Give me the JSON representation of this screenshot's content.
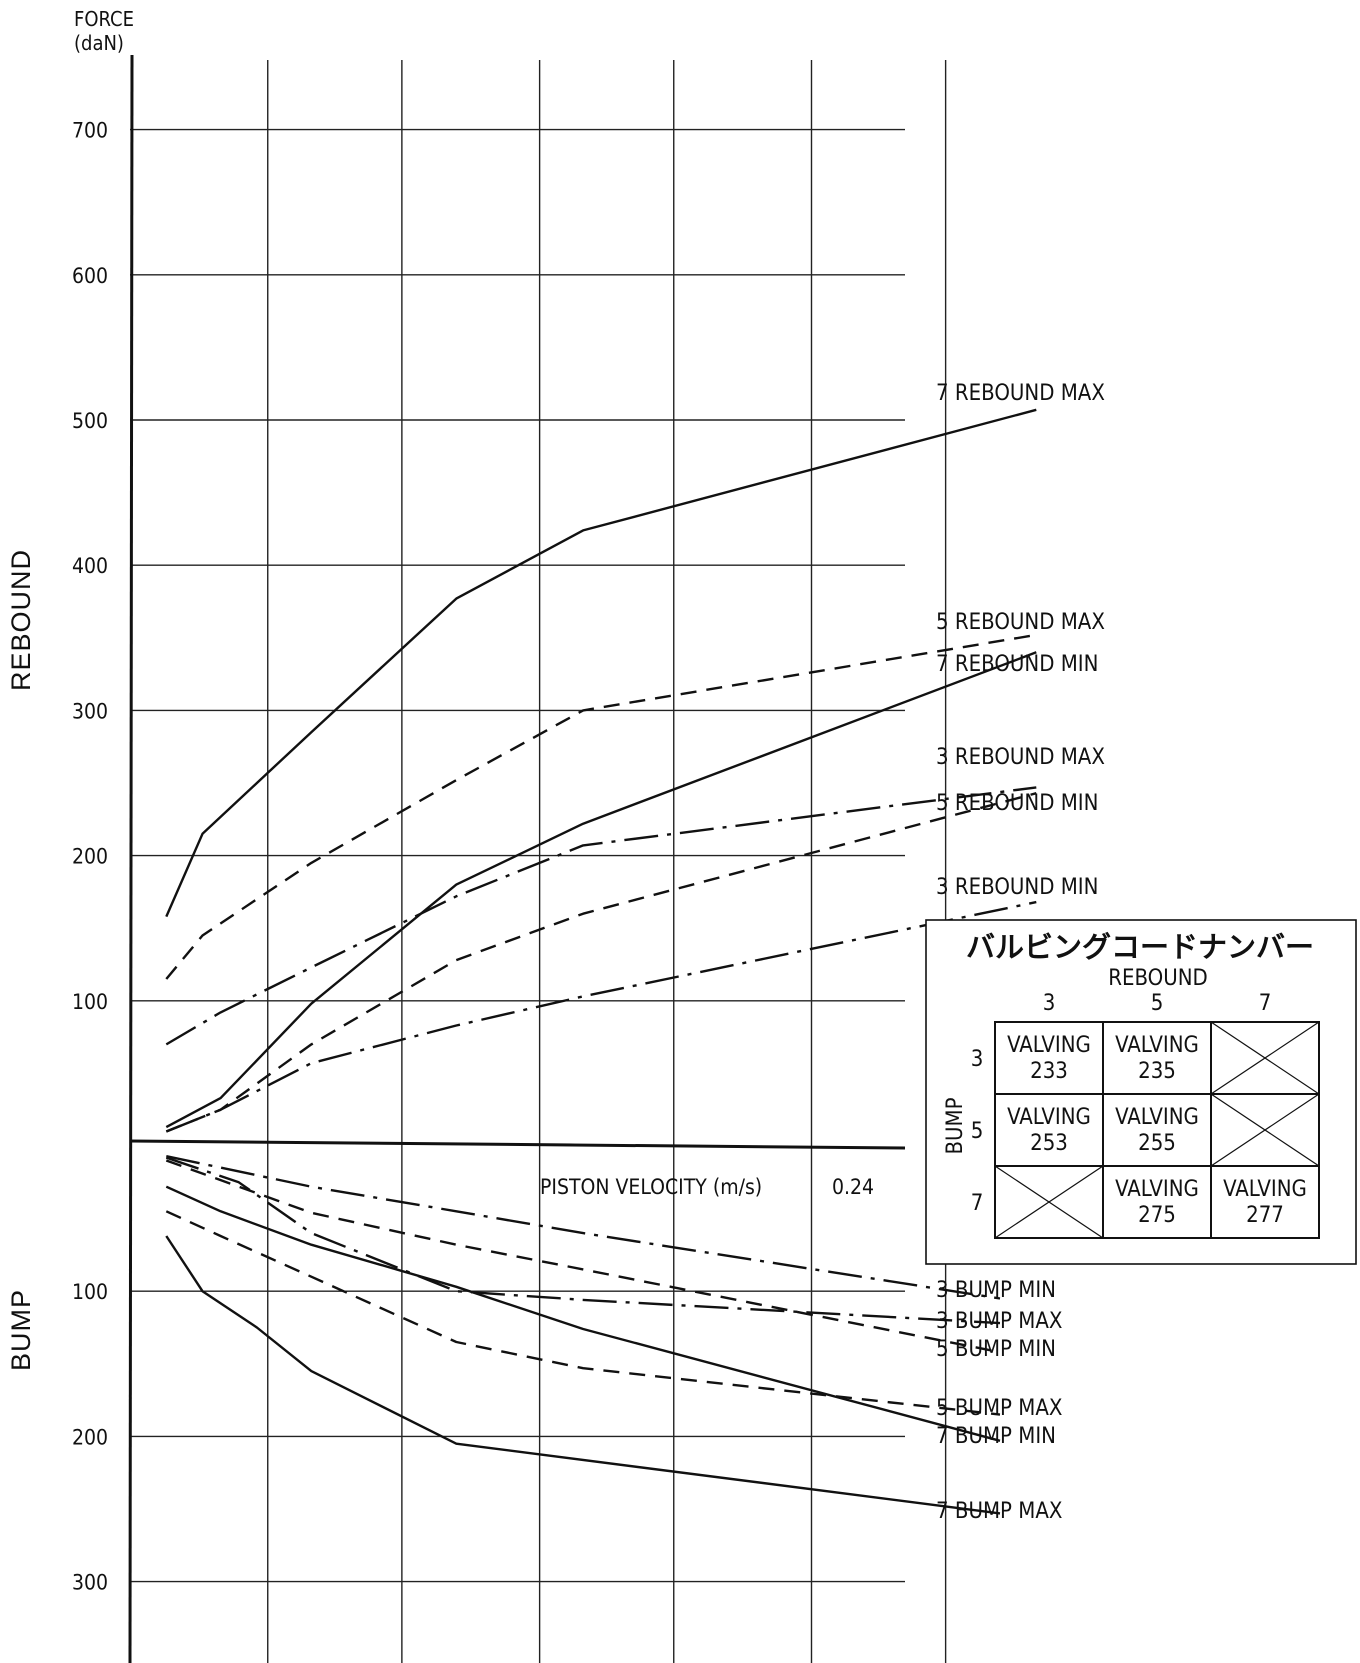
{
  "chart_data": {
    "type": "line",
    "y_axis": {
      "title_line1": "FORCE",
      "title_line2": "(daN)",
      "rebound_ticks": [
        100,
        200,
        300,
        400,
        500,
        600,
        700
      ],
      "bump_ticks": [
        100,
        200,
        300
      ],
      "rebound_label": "REBOUND",
      "bump_label": "BUMP"
    },
    "x_axis": {
      "label": "PISTON VELOCITY (m/s)",
      "max_label": "0.24",
      "range": [
        0,
        0.24
      ]
    },
    "series": [
      {
        "name": "7 REBOUND MAX",
        "side": "rebound",
        "style": "solid",
        "points": [
          [
            0.01,
            158
          ],
          [
            0.02,
            215
          ],
          [
            0.035,
            250
          ],
          [
            0.05,
            285
          ],
          [
            0.09,
            377
          ],
          [
            0.125,
            424
          ],
          [
            0.25,
            507
          ]
        ]
      },
      {
        "name": "5 REBOUND MAX",
        "side": "rebound",
        "style": "dash",
        "points": [
          [
            0.01,
            115
          ],
          [
            0.02,
            145
          ],
          [
            0.05,
            195
          ],
          [
            0.09,
            252
          ],
          [
            0.125,
            300
          ],
          [
            0.25,
            352
          ]
        ]
      },
      {
        "name": "7 REBOUND MIN",
        "side": "rebound",
        "style": "solid",
        "points": [
          [
            0.01,
            13
          ],
          [
            0.025,
            33
          ],
          [
            0.05,
            98
          ],
          [
            0.09,
            180
          ],
          [
            0.125,
            222
          ],
          [
            0.25,
            340
          ]
        ]
      },
      {
        "name": "3 REBOUND MAX",
        "side": "rebound",
        "style": "dashdot",
        "points": [
          [
            0.01,
            70
          ],
          [
            0.025,
            92
          ],
          [
            0.05,
            123
          ],
          [
            0.09,
            172
          ],
          [
            0.125,
            207
          ],
          [
            0.25,
            247
          ]
        ]
      },
      {
        "name": "5 REBOUND MIN",
        "side": "rebound",
        "style": "dash",
        "points": [
          [
            0.01,
            10
          ],
          [
            0.025,
            25
          ],
          [
            0.05,
            70
          ],
          [
            0.09,
            128
          ],
          [
            0.125,
            160
          ],
          [
            0.25,
            243
          ]
        ]
      },
      {
        "name": "3 REBOUND MIN",
        "side": "rebound",
        "style": "dashdot",
        "points": [
          [
            0.01,
            10
          ],
          [
            0.025,
            25
          ],
          [
            0.05,
            57
          ],
          [
            0.09,
            83
          ],
          [
            0.125,
            103
          ],
          [
            0.25,
            168
          ]
        ]
      },
      {
        "name": "3 BUMP MIN",
        "side": "bump",
        "style": "dashdot",
        "points": [
          [
            0.01,
            7
          ],
          [
            0.05,
            28
          ],
          [
            0.09,
            45
          ],
          [
            0.125,
            60
          ],
          [
            0.24,
            105
          ]
        ]
      },
      {
        "name": "3 BUMP MAX",
        "side": "bump",
        "style": "dashdot",
        "points": [
          [
            0.01,
            8
          ],
          [
            0.03,
            25
          ],
          [
            0.05,
            60
          ],
          [
            0.09,
            100
          ],
          [
            0.125,
            106
          ],
          [
            0.24,
            122
          ]
        ]
      },
      {
        "name": "5 BUMP MIN",
        "side": "bump",
        "style": "dash",
        "points": [
          [
            0.01,
            10
          ],
          [
            0.05,
            46
          ],
          [
            0.09,
            68
          ],
          [
            0.125,
            85
          ],
          [
            0.24,
            142
          ]
        ]
      },
      {
        "name": "5 BUMP MAX",
        "side": "bump",
        "style": "dash",
        "points": [
          [
            0.01,
            45
          ],
          [
            0.025,
            62
          ],
          [
            0.05,
            90
          ],
          [
            0.09,
            135
          ],
          [
            0.125,
            153
          ],
          [
            0.24,
            185
          ]
        ]
      },
      {
        "name": "7 BUMP MIN",
        "side": "bump",
        "style": "solid",
        "points": [
          [
            0.01,
            28
          ],
          [
            0.025,
            45
          ],
          [
            0.05,
            68
          ],
          [
            0.09,
            97
          ],
          [
            0.125,
            126
          ],
          [
            0.24,
            203
          ]
        ]
      },
      {
        "name": "7 BUMP MAX",
        "side": "bump",
        "style": "solid",
        "points": [
          [
            0.01,
            62
          ],
          [
            0.02,
            100
          ],
          [
            0.035,
            125
          ],
          [
            0.05,
            155
          ],
          [
            0.09,
            205
          ],
          [
            0.24,
            253
          ]
        ]
      }
    ]
  },
  "valving_table": {
    "title": "バルビングコードナンバー",
    "col_header": "REBOUND",
    "row_header": "BUMP",
    "cols": [
      "3",
      "5",
      "7"
    ],
    "rows": [
      "3",
      "5",
      "7"
    ],
    "word": "VALVING",
    "cells": [
      [
        "233",
        "235",
        ""
      ],
      [
        "253",
        "255",
        ""
      ],
      [
        "",
        "275",
        "277"
      ]
    ]
  }
}
